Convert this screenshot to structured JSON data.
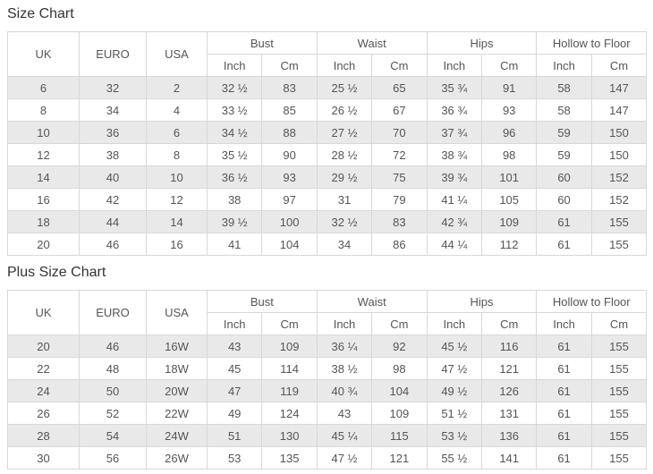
{
  "tables": [
    {
      "title": "Size Chart",
      "headers": {
        "uk": "UK",
        "euro": "EURO",
        "usa": "USA",
        "bust": "Bust",
        "waist": "Waist",
        "hips": "Hips",
        "hollow": "Hollow to Floor",
        "inch": "Inch",
        "cm": "Cm"
      },
      "rows": [
        [
          "6",
          "32",
          "2",
          "32 ½",
          "83",
          "25 ½",
          "65",
          "35 ¾",
          "91",
          "58",
          "147"
        ],
        [
          "8",
          "34",
          "4",
          "33 ½",
          "85",
          "26 ½",
          "67",
          "36 ¾",
          "93",
          "58",
          "147"
        ],
        [
          "10",
          "36",
          "6",
          "34 ½",
          "88",
          "27 ½",
          "70",
          "37 ¾",
          "96",
          "59",
          "150"
        ],
        [
          "12",
          "38",
          "8",
          "35 ½",
          "90",
          "28 ½",
          "72",
          "38 ¾",
          "98",
          "59",
          "150"
        ],
        [
          "14",
          "40",
          "10",
          "36 ½",
          "93",
          "29 ½",
          "75",
          "39 ¾",
          "101",
          "60",
          "152"
        ],
        [
          "16",
          "42",
          "12",
          "38",
          "97",
          "31",
          "79",
          "41 ¼",
          "105",
          "60",
          "152"
        ],
        [
          "18",
          "44",
          "14",
          "39 ½",
          "100",
          "32 ½",
          "83",
          "42 ¾",
          "109",
          "61",
          "155"
        ],
        [
          "20",
          "46",
          "16",
          "41",
          "104",
          "34",
          "86",
          "44 ¼",
          "112",
          "61",
          "155"
        ]
      ]
    },
    {
      "title": "Plus Size Chart",
      "headers": {
        "uk": "UK",
        "euro": "EURO",
        "usa": "USA",
        "bust": "Bust",
        "waist": "Waist",
        "hips": "Hips",
        "hollow": "Hollow to Floor",
        "inch": "Inch",
        "cm": "Cm"
      },
      "rows": [
        [
          "20",
          "46",
          "16W",
          "43",
          "109",
          "36 ¼",
          "92",
          "45 ½",
          "116",
          "61",
          "155"
        ],
        [
          "22",
          "48",
          "18W",
          "45",
          "114",
          "38 ½",
          "98",
          "47 ½",
          "121",
          "61",
          "155"
        ],
        [
          "24",
          "50",
          "20W",
          "47",
          "119",
          "40 ¾",
          "104",
          "49 ½",
          "126",
          "61",
          "155"
        ],
        [
          "26",
          "52",
          "22W",
          "49",
          "124",
          "43",
          "109",
          "51 ½",
          "131",
          "61",
          "155"
        ],
        [
          "28",
          "54",
          "24W",
          "51",
          "130",
          "45 ¼",
          "115",
          "53 ½",
          "136",
          "61",
          "155"
        ],
        [
          "30",
          "56",
          "26W",
          "53",
          "135",
          "47 ½",
          "121",
          "55 ½",
          "141",
          "61",
          "155"
        ]
      ]
    }
  ],
  "colors": {
    "stripe": "#e9e9e9",
    "border": "#d8d8d8",
    "text": "#555555",
    "title": "#333333"
  }
}
